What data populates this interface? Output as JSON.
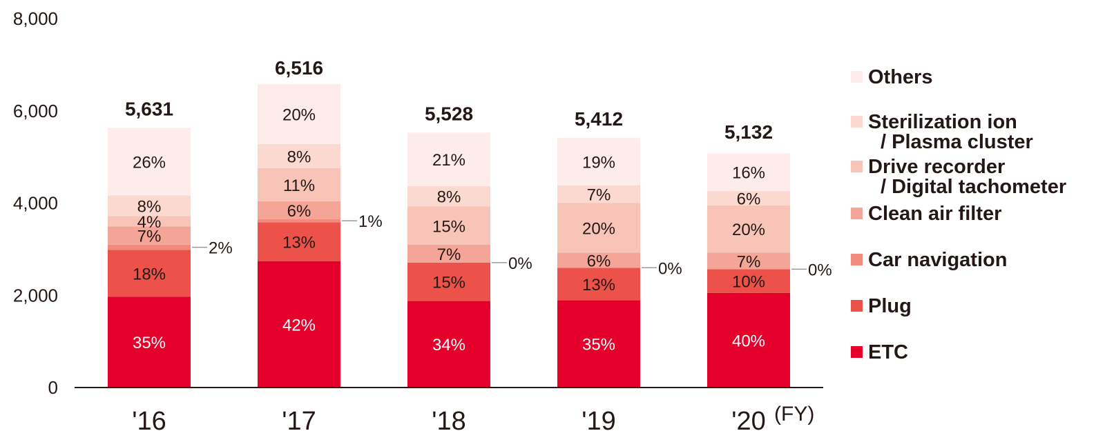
{
  "chart_data": {
    "type": "bar",
    "stacked": true,
    "unit_label": "(FY)",
    "ylim": [
      0,
      8000
    ],
    "yticks": [
      0,
      2000,
      4000,
      6000,
      8000
    ],
    "ytick_labels": [
      "0",
      "2,000",
      "4,000",
      "6,000",
      "8,000"
    ],
    "categories": [
      "'16",
      "'17",
      "'18",
      "'19",
      "'20"
    ],
    "totals": [
      5631,
      6516,
      5528,
      5412,
      5132
    ],
    "total_labels": [
      "5,631",
      "6,516",
      "5,528",
      "5,412",
      "5,132"
    ],
    "series": [
      {
        "name": "ETC",
        "color": "#e4002b",
        "percent": [
          35,
          42,
          34,
          35,
          40
        ],
        "labels": [
          "35%",
          "42%",
          "34%",
          "35%",
          "40%"
        ]
      },
      {
        "name": "Plug",
        "color": "#ec524a",
        "percent": [
          18,
          13,
          15,
          13,
          10
        ],
        "labels": [
          "18%",
          "13%",
          "15%",
          "13%",
          "10%"
        ]
      },
      {
        "name": "Car navigation",
        "color": "#f18c7c",
        "percent": [
          2,
          1,
          0,
          0,
          0
        ],
        "labels": [
          "2%",
          "1%",
          "0%",
          "0%",
          "0%"
        ]
      },
      {
        "name": "Clean air filter",
        "color": "#f4a597",
        "percent": [
          7,
          6,
          7,
          6,
          7
        ],
        "labels": [
          "7%",
          "6%",
          "7%",
          "6%",
          "7%"
        ]
      },
      {
        "name": "Drive recorder / Digital tachometer",
        "color": "#f8c4b8",
        "percent": [
          4,
          11,
          15,
          20,
          20
        ],
        "labels": [
          "4%",
          "11%",
          "15%",
          "20%",
          "20%"
        ]
      },
      {
        "name": "Sterilization ion / Plasma cluster",
        "color": "#fbd9d0",
        "percent": [
          8,
          8,
          8,
          7,
          6
        ],
        "labels": [
          "8%",
          "8%",
          "8%",
          "7%",
          "6%"
        ]
      },
      {
        "name": "Others",
        "color": "#fdecea",
        "percent": [
          26,
          20,
          21,
          19,
          16
        ],
        "labels": [
          "26%",
          "20%",
          "21%",
          "19%",
          "16%"
        ]
      }
    ],
    "legend": [
      {
        "lines": [
          "Others"
        ],
        "color": "#fdecea"
      },
      {
        "lines": [
          "Sterilization ion",
          "/ Plasma cluster"
        ],
        "color": "#fbd9d0"
      },
      {
        "lines": [
          "Drive recorder",
          "/ Digital tachometer"
        ],
        "color": "#f8c4b8"
      },
      {
        "lines": [
          "Clean air filter"
        ],
        "color": "#f4a597"
      },
      {
        "lines": [
          "Car navigation"
        ],
        "color": "#f18c7c"
      },
      {
        "lines": [
          "Plug"
        ],
        "color": "#ec524a"
      },
      {
        "lines": [
          "ETC"
        ],
        "color": "#e4002b"
      }
    ],
    "legend_position": "right"
  }
}
